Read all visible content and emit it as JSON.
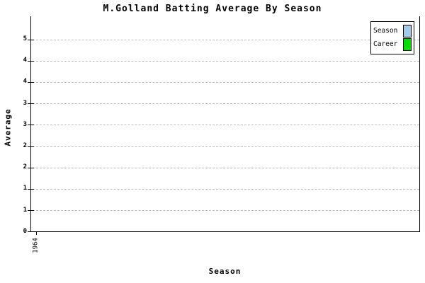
{
  "page": {
    "background_color": "#ffffff",
    "text_color": "#000000"
  },
  "chart_data": {
    "type": "bar",
    "title": "M.Golland Batting Average By Season",
    "xlabel": "Season",
    "ylabel": "Average",
    "categories": [
      "1964"
    ],
    "series": [
      {
        "name": "Season",
        "color": "#A4CAEA",
        "values": []
      },
      {
        "name": "Career",
        "color": "#00DD00",
        "values": []
      }
    ],
    "ylim": [
      0,
      5
    ],
    "y_tick_labels_top_to_bottom": [
      "5",
      "4",
      "4",
      "3",
      "3",
      "2",
      "2",
      "1",
      "1",
      "0"
    ],
    "x_tick_labels": [
      "1964"
    ],
    "grid": "horizontal dashed",
    "gridline_color": "#bbbbbb",
    "axis_color": "#000000",
    "legend_position": "top-right",
    "legend": {
      "entries": [
        {
          "label": "Season",
          "color": "#A4CAEA"
        },
        {
          "label": "Career",
          "color": "#00DD00"
        }
      ]
    }
  }
}
